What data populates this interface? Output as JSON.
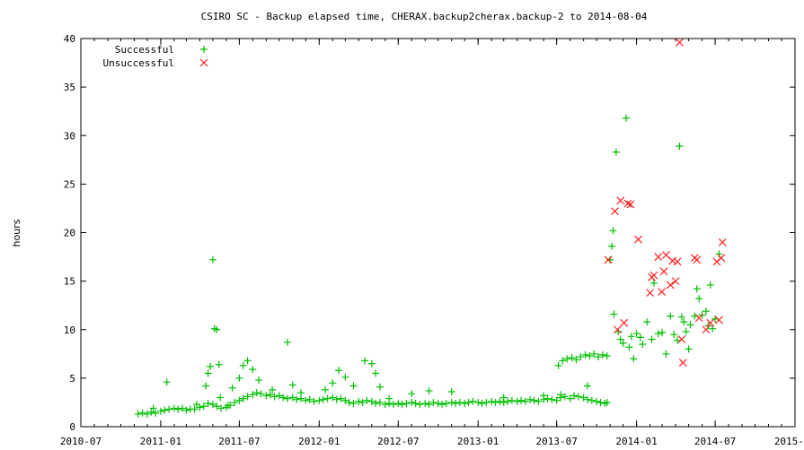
{
  "chart_data": {
    "type": "scatter",
    "title": "CSIRO SC - Backup elapsed time, CHERAX.backup2cherax.backup-2 to 2014-08-04",
    "xlabel": "",
    "ylabel": "hours",
    "xlim": [
      "2010-07",
      "2015-01"
    ],
    "ylim": [
      0,
      40
    ],
    "x_ticks": [
      "2010-07",
      "2011-01",
      "2011-07",
      "2012-01",
      "2012-07",
      "2013-01",
      "2013-07",
      "2014-01",
      "2014-07",
      "2015-01"
    ],
    "y_ticks": [
      0,
      5,
      10,
      15,
      20,
      25,
      30,
      35,
      40
    ],
    "grid": false,
    "legend": "top-left",
    "colors": {
      "successful": "#00c000",
      "unsuccessful": "#ff2020"
    },
    "series": [
      {
        "name": "Successful",
        "marker": "plus",
        "points": [
          [
            "2010-11-10",
            1.3
          ],
          [
            "2010-11-20",
            1.4
          ],
          [
            "2010-12-01",
            1.3
          ],
          [
            "2010-12-10",
            1.5
          ],
          [
            "2010-12-20",
            1.4
          ],
          [
            "2011-01-01",
            1.6
          ],
          [
            "2011-01-10",
            1.7
          ],
          [
            "2011-01-20",
            1.8
          ],
          [
            "2011-02-01",
            1.9
          ],
          [
            "2011-02-10",
            1.8
          ],
          [
            "2011-02-20",
            1.9
          ],
          [
            "2011-03-01",
            1.7
          ],
          [
            "2011-03-10",
            1.8
          ],
          [
            "2011-03-20",
            1.8
          ],
          [
            "2011-04-01",
            2.0
          ],
          [
            "2011-04-10",
            2.1
          ],
          [
            "2011-04-20",
            2.4
          ],
          [
            "2011-05-01",
            2.3
          ],
          [
            "2011-05-10",
            2.1
          ],
          [
            "2011-05-20",
            1.9
          ],
          [
            "2011-06-01",
            2.0
          ],
          [
            "2011-06-10",
            2.2
          ],
          [
            "2011-06-20",
            2.5
          ],
          [
            "2011-07-01",
            2.7
          ],
          [
            "2011-07-10",
            2.9
          ],
          [
            "2011-07-20",
            3.1
          ],
          [
            "2011-08-01",
            3.3
          ],
          [
            "2011-08-10",
            3.5
          ],
          [
            "2011-08-20",
            3.4
          ],
          [
            "2011-09-01",
            3.2
          ],
          [
            "2011-09-10",
            3.3
          ],
          [
            "2011-09-20",
            3.1
          ],
          [
            "2011-10-01",
            3.2
          ],
          [
            "2011-10-10",
            3.0
          ],
          [
            "2011-10-20",
            2.9
          ],
          [
            "2011-11-01",
            3.0
          ],
          [
            "2011-11-10",
            2.8
          ],
          [
            "2011-11-20",
            2.9
          ],
          [
            "2011-12-01",
            2.7
          ],
          [
            "2011-12-10",
            2.8
          ],
          [
            "2011-12-20",
            2.6
          ],
          [
            "2012-01-01",
            2.7
          ],
          [
            "2012-01-10",
            2.8
          ],
          [
            "2012-01-20",
            2.9
          ],
          [
            "2012-02-01",
            3.0
          ],
          [
            "2012-02-10",
            2.8
          ],
          [
            "2012-02-20",
            2.9
          ],
          [
            "2012-03-01",
            2.7
          ],
          [
            "2012-03-10",
            2.5
          ],
          [
            "2012-03-20",
            2.4
          ],
          [
            "2012-04-01",
            2.6
          ],
          [
            "2012-04-10",
            2.5
          ],
          [
            "2012-04-20",
            2.7
          ],
          [
            "2012-05-01",
            2.6
          ],
          [
            "2012-05-10",
            2.4
          ],
          [
            "2012-05-20",
            2.5
          ],
          [
            "2012-06-01",
            2.3
          ],
          [
            "2012-06-10",
            2.4
          ],
          [
            "2012-06-20",
            2.3
          ],
          [
            "2012-07-01",
            2.4
          ],
          [
            "2012-07-10",
            2.3
          ],
          [
            "2012-07-20",
            2.4
          ],
          [
            "2012-08-01",
            2.5
          ],
          [
            "2012-08-10",
            2.4
          ],
          [
            "2012-08-20",
            2.3
          ],
          [
            "2012-09-01",
            2.4
          ],
          [
            "2012-09-10",
            2.3
          ],
          [
            "2012-09-20",
            2.5
          ],
          [
            "2012-10-01",
            2.4
          ],
          [
            "2012-10-10",
            2.3
          ],
          [
            "2012-10-20",
            2.4
          ],
          [
            "2012-11-01",
            2.5
          ],
          [
            "2012-11-10",
            2.4
          ],
          [
            "2012-11-20",
            2.5
          ],
          [
            "2012-12-01",
            2.4
          ],
          [
            "2012-12-10",
            2.5
          ],
          [
            "2012-12-20",
            2.6
          ],
          [
            "2013-01-01",
            2.5
          ],
          [
            "2013-01-10",
            2.4
          ],
          [
            "2013-01-20",
            2.5
          ],
          [
            "2013-02-01",
            2.6
          ],
          [
            "2013-02-10",
            2.5
          ],
          [
            "2013-02-20",
            2.6
          ],
          [
            "2013-03-01",
            2.5
          ],
          [
            "2013-03-10",
            2.6
          ],
          [
            "2013-03-20",
            2.7
          ],
          [
            "2013-04-01",
            2.6
          ],
          [
            "2013-04-10",
            2.7
          ],
          [
            "2013-04-20",
            2.6
          ],
          [
            "2013-05-01",
            2.8
          ],
          [
            "2013-05-10",
            2.7
          ],
          [
            "2013-05-20",
            2.6
          ],
          [
            "2013-06-01",
            2.8
          ],
          [
            "2013-06-10",
            2.9
          ],
          [
            "2013-06-20",
            2.8
          ],
          [
            "2013-07-01",
            2.7
          ],
          [
            "2013-07-10",
            3.0
          ],
          [
            "2013-07-20",
            3.1
          ],
          [
            "2013-08-01",
            2.9
          ],
          [
            "2013-08-10",
            3.2
          ],
          [
            "2013-08-20",
            3.1
          ],
          [
            "2013-09-01",
            3.0
          ],
          [
            "2013-09-10",
            2.8
          ],
          [
            "2013-09-20",
            2.7
          ],
          [
            "2013-10-01",
            2.6
          ],
          [
            "2013-10-10",
            2.5
          ],
          [
            "2013-10-20",
            2.4
          ],
          [
            "2013-07-05",
            6.3
          ],
          [
            "2013-07-15",
            6.8
          ],
          [
            "2013-07-25",
            7.0
          ],
          [
            "2013-08-05",
            7.1
          ],
          [
            "2013-08-15",
            6.9
          ],
          [
            "2013-08-25",
            7.2
          ],
          [
            "2013-09-05",
            7.4
          ],
          [
            "2013-09-15",
            7.3
          ],
          [
            "2013-09-25",
            7.5
          ],
          [
            "2013-10-05",
            7.2
          ],
          [
            "2013-10-15",
            7.4
          ],
          [
            "2013-10-25",
            7.3
          ],
          [
            "2010-12-15",
            1.9
          ],
          [
            "2011-01-15",
            4.6
          ],
          [
            "2011-03-25",
            2.3
          ],
          [
            "2011-04-15",
            4.2
          ],
          [
            "2011-04-20",
            5.5
          ],
          [
            "2011-04-25",
            6.2
          ],
          [
            "2011-05-01",
            17.2
          ],
          [
            "2011-05-05",
            10.1
          ],
          [
            "2011-05-10",
            10.0
          ],
          [
            "2011-05-15",
            6.4
          ],
          [
            "2011-05-18",
            3.0
          ],
          [
            "2011-06-05",
            2.2
          ],
          [
            "2011-06-15",
            4.0
          ],
          [
            "2011-07-01",
            5.0
          ],
          [
            "2011-07-10",
            6.3
          ],
          [
            "2011-07-20",
            6.8
          ],
          [
            "2011-08-01",
            5.9
          ],
          [
            "2011-08-15",
            4.8
          ],
          [
            "2011-09-15",
            3.8
          ],
          [
            "2011-10-20",
            8.7
          ],
          [
            "2011-11-01",
            4.3
          ],
          [
            "2011-11-20",
            3.5
          ],
          [
            "2012-01-15",
            3.8
          ],
          [
            "2012-02-01",
            4.5
          ],
          [
            "2012-02-15",
            5.8
          ],
          [
            "2012-03-01",
            5.1
          ],
          [
            "2012-03-20",
            4.2
          ],
          [
            "2012-04-15",
            6.8
          ],
          [
            "2012-05-01",
            6.5
          ],
          [
            "2012-05-10",
            5.5
          ],
          [
            "2012-05-20",
            4.1
          ],
          [
            "2012-06-10",
            2.9
          ],
          [
            "2012-08-01",
            3.4
          ],
          [
            "2012-09-10",
            3.7
          ],
          [
            "2012-11-01",
            3.6
          ],
          [
            "2013-03-01",
            3.0
          ],
          [
            "2013-06-01",
            3.2
          ],
          [
            "2013-07-10",
            3.3
          ],
          [
            "2013-09-10",
            4.2
          ],
          [
            "2013-10-25",
            2.5
          ],
          [
            "2013-11-01",
            17.2
          ],
          [
            "2013-11-05",
            18.6
          ],
          [
            "2013-11-08",
            20.2
          ],
          [
            "2013-11-10",
            11.6
          ],
          [
            "2013-11-15",
            28.3
          ],
          [
            "2013-11-20",
            9.8
          ],
          [
            "2013-11-25",
            9.0
          ],
          [
            "2013-12-01",
            8.6
          ],
          [
            "2013-12-08",
            31.8
          ],
          [
            "2013-12-15",
            8.2
          ],
          [
            "2013-12-20",
            9.3
          ],
          [
            "2013-12-25",
            7.0
          ],
          [
            "2014-01-01",
            9.6
          ],
          [
            "2014-01-10",
            9.2
          ],
          [
            "2014-01-15",
            8.5
          ],
          [
            "2014-01-25",
            10.8
          ],
          [
            "2014-02-05",
            9.0
          ],
          [
            "2014-02-10",
            14.8
          ],
          [
            "2014-02-20",
            9.6
          ],
          [
            "2014-03-01",
            9.7
          ],
          [
            "2014-03-10",
            7.5
          ],
          [
            "2014-03-20",
            11.4
          ],
          [
            "2014-03-28",
            9.5
          ],
          [
            "2014-04-05",
            8.9
          ],
          [
            "2014-04-10",
            28.9
          ],
          [
            "2014-04-15",
            11.3
          ],
          [
            "2014-04-20",
            10.8
          ],
          [
            "2014-04-25",
            9.8
          ],
          [
            "2014-05-01",
            8.0
          ],
          [
            "2014-05-05",
            10.5
          ],
          [
            "2014-05-15",
            11.4
          ],
          [
            "2014-05-20",
            14.2
          ],
          [
            "2014-05-25",
            13.2
          ],
          [
            "2014-06-01",
            11.5
          ],
          [
            "2014-06-10",
            11.9
          ],
          [
            "2014-06-15",
            10.4
          ],
          [
            "2014-06-20",
            14.6
          ],
          [
            "2014-06-25",
            10.1
          ],
          [
            "2014-07-01",
            11.1
          ],
          [
            "2014-07-10",
            17.8
          ]
        ]
      },
      {
        "name": "Unsuccessful",
        "marker": "cross",
        "points": [
          [
            "2013-10-28",
            17.2
          ],
          [
            "2013-11-12",
            22.2
          ],
          [
            "2013-11-18",
            10.0
          ],
          [
            "2013-11-25",
            23.3
          ],
          [
            "2013-12-03",
            10.7
          ],
          [
            "2013-12-12",
            23.0
          ],
          [
            "2013-12-18",
            22.9
          ],
          [
            "2014-01-05",
            19.3
          ],
          [
            "2014-02-01",
            13.8
          ],
          [
            "2014-02-05",
            15.4
          ],
          [
            "2014-02-10",
            15.6
          ],
          [
            "2014-02-20",
            17.5
          ],
          [
            "2014-02-28",
            13.9
          ],
          [
            "2014-03-05",
            16.0
          ],
          [
            "2014-03-10",
            17.7
          ],
          [
            "2014-03-20",
            14.6
          ],
          [
            "2014-03-25",
            17.1
          ],
          [
            "2014-04-01",
            15.0
          ],
          [
            "2014-04-05",
            17.0
          ],
          [
            "2014-04-10",
            39.6
          ],
          [
            "2014-04-15",
            9.0
          ],
          [
            "2014-04-18",
            6.6
          ],
          [
            "2014-05-15",
            17.4
          ],
          [
            "2014-05-20",
            17.2
          ],
          [
            "2014-05-25",
            11.2
          ],
          [
            "2014-06-10",
            10.0
          ],
          [
            "2014-06-20",
            10.7
          ],
          [
            "2014-07-05",
            17.0
          ],
          [
            "2014-07-10",
            11.0
          ],
          [
            "2014-07-15",
            17.4
          ],
          [
            "2014-07-18",
            19.0
          ]
        ]
      }
    ]
  }
}
